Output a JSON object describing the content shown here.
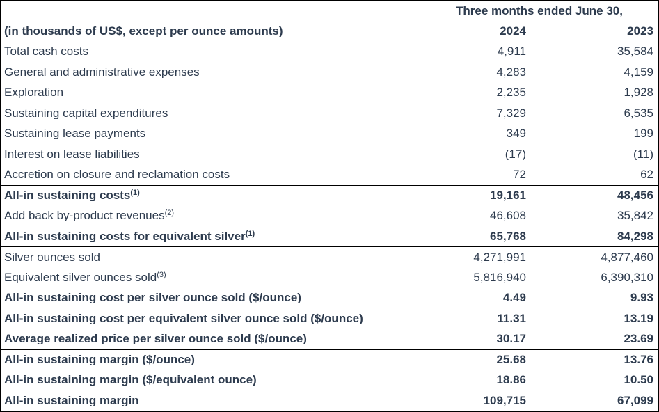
{
  "table": {
    "period_header": "Three months ended June 30,",
    "row_header": {
      "caption": "(in thousands of US$, except per ounce amounts)",
      "year_2024": "2024",
      "year_2023": "2023"
    },
    "rows": [
      {
        "label": "Total cash costs",
        "sup": "",
        "v2024": "4,911",
        "v2023": "35,584"
      },
      {
        "label": "General and administrative expenses",
        "sup": "",
        "v2024": "4,283",
        "v2023": "4,159"
      },
      {
        "label": "Exploration",
        "sup": "",
        "v2024": "2,235",
        "v2023": "1,928"
      },
      {
        "label": "Sustaining capital expenditures",
        "sup": "",
        "v2024": "7,329",
        "v2023": "6,535"
      },
      {
        "label": "Sustaining lease payments",
        "sup": "",
        "v2024": "349",
        "v2023": "199"
      },
      {
        "label": "Interest on lease liabilities",
        "sup": "",
        "v2024": "(17)",
        "v2023": "(11)"
      },
      {
        "label": "Accretion on closure and reclamation costs",
        "sup": "",
        "v2024": "72",
        "v2023": "62"
      },
      {
        "label": "All-in sustaining costs",
        "sup": "(1)",
        "v2024": "19,161",
        "v2023": "48,456"
      },
      {
        "label": "Add back by-product revenues",
        "sup": "(2)",
        "v2024": "46,608",
        "v2023": "35,842"
      },
      {
        "label": "All-in sustaining costs for equivalent silver",
        "sup": "(1)",
        "v2024": "65,768",
        "v2023": "84,298"
      },
      {
        "label": "Silver ounces sold",
        "sup": "",
        "v2024": "4,271,991",
        "v2023": "4,877,460"
      },
      {
        "label": "Equivalent silver ounces sold",
        "sup": "(3)",
        "v2024": "5,816,940",
        "v2023": "6,390,310"
      },
      {
        "label": "All-in sustaining cost per silver ounce sold ($/ounce)",
        "sup": "",
        "v2024": "4.49",
        "v2023": "9.93"
      },
      {
        "label": "All-in sustaining cost per equivalent silver ounce sold ($/ounce)",
        "sup": "",
        "v2024": "11.31",
        "v2023": "13.19"
      },
      {
        "label": "Average realized price per silver ounce sold ($/ounce)",
        "sup": "",
        "v2024": "30.17",
        "v2023": "23.69"
      },
      {
        "label": "All-in sustaining margin ($/ounce)",
        "sup": "",
        "v2024": "25.68",
        "v2023": "13.76"
      },
      {
        "label": "All-in sustaining margin ($/equivalent ounce)",
        "sup": "",
        "v2024": "18.86",
        "v2023": "10.50"
      },
      {
        "label": "All-in sustaining margin",
        "sup": "",
        "v2024": "109,715",
        "v2023": "67,099"
      }
    ]
  },
  "colors": {
    "text": "#2d3b4e",
    "border": "#000000",
    "background": "#ffffff"
  }
}
